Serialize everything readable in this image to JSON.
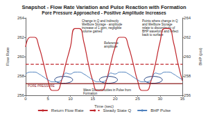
{
  "chart_data": {
    "type": "line",
    "title": "Snapshot - Flow Rate Variation and Pulse Reaction with Formation",
    "subtitle": "Pore Pressure Approached - Positive Amplitude Increases",
    "x_label": "Time (sec)",
    "y_label": "Flow Rate",
    "y2_label": "BHP (psi)",
    "x": [
      0,
      1,
      2,
      3,
      4,
      5,
      6,
      7,
      8,
      9,
      10,
      11,
      12,
      13,
      14,
      15,
      16,
      17,
      18,
      19,
      20,
      21,
      22,
      23,
      24,
      25,
      26,
      27,
      28,
      29,
      30,
      31,
      32,
      33,
      34,
      35
    ],
    "series": [
      {
        "name": "Return Flow Rate",
        "color": "#c0272d",
        "line_style": "solid",
        "values": [
          261.0,
          262.0,
          262.0,
          261.0,
          259.3,
          257.5,
          256.5,
          256.5,
          257.5,
          259.3,
          261.0,
          262.9,
          262.9,
          261.5,
          259.3,
          257.5,
          256.5,
          256.5,
          257.5,
          259.3,
          261.0,
          262.0,
          262.0,
          261.0,
          259.3,
          257.5,
          256.5,
          256.5,
          257.5,
          259.3,
          261.5,
          262.9,
          262.9,
          261.5,
          259.3,
          257.5
        ]
      },
      {
        "name": "Steady State Q",
        "color": "#c0272d",
        "line_style": "dashed",
        "values": [
          259.2,
          259.2,
          259.2,
          259.2,
          259.2,
          259.2,
          259.2,
          259.2,
          259.2,
          259.2,
          259.2,
          259.2,
          259.2,
          259.2,
          259.2,
          259.2,
          259.2,
          259.2,
          259.2,
          259.2,
          259.2,
          259.2,
          259.2,
          259.2,
          259.2,
          259.2,
          259.2,
          259.2,
          259.2,
          259.2,
          259.2,
          259.2,
          259.2,
          259.2,
          259.2,
          259.2
        ]
      },
      {
        "name": "BHP Pulse",
        "color": "#4f81bd",
        "line_style": "solid",
        "axis": "y2",
        "values": [
          258.2,
          258.4,
          258.4,
          258.2,
          257.9,
          257.6,
          257.4,
          257.4,
          257.6,
          258.3,
          258.2,
          258.4,
          258.4,
          258.2,
          257.9,
          257.6,
          257.4,
          257.4,
          257.6,
          258.3,
          258.2,
          258.4,
          258.4,
          258.2,
          257.9,
          257.6,
          257.4,
          257.4,
          257.6,
          258.3,
          258.2,
          258.4,
          258.4,
          258.2,
          257.9,
          257.6
        ]
      }
    ],
    "pore_pressure": {
      "value": 257.2,
      "label": "PORE PRESSURE",
      "color": "#8b1a1a"
    },
    "annotations": [
      "Change in Q and Indirectly Wellbore Storage - amplitude increase of 1 gpm, negligible volume gained",
      "Reference amplitude",
      "Points where change in Q and Wellbore Storage relate to discontinuity of BHP waveform and reflect back to surface",
      "Wave Discontinuities in Pulse from Formation"
    ],
    "xlim": [
      0,
      35
    ],
    "xticks": [
      0,
      5,
      10,
      15,
      20,
      25,
      30,
      35
    ],
    "ylim": [
      256,
      264
    ],
    "yticks": [
      256,
      258,
      260,
      262,
      264
    ],
    "y2lim": [
      256,
      264
    ],
    "y2ticks": [
      256,
      258,
      260,
      262,
      264
    ],
    "grid": false,
    "legend": "bottom"
  }
}
